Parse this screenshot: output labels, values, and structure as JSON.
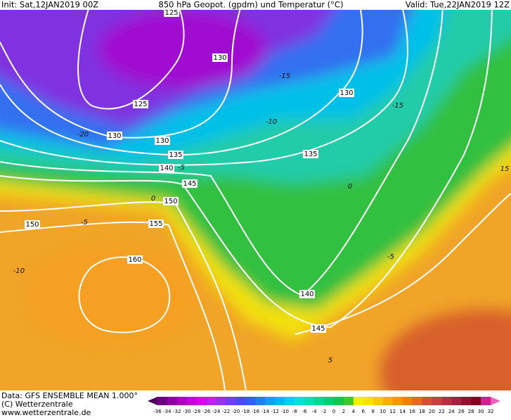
{
  "header": {
    "init": "Init: Sat,12JAN2019 00Z",
    "title": "850 hPa Geopot. (gpdm) und Temperatur (°C)",
    "valid": "Valid: Tue,22JAN2019 12Z"
  },
  "footer": {
    "data": "Data: GFS ENSEMBLE MEAN 1.000°",
    "copyright": "(C) Wetterzentrale",
    "url": "www.wetterzentrale.de"
  },
  "geopotential_labels": [
    "125",
    "130",
    "125",
    "130",
    "130",
    "130",
    "135",
    "135",
    "140",
    "145",
    "150",
    "150",
    "155",
    "160",
    "140",
    "145"
  ],
  "temperature_labels": [
    "-15",
    "-15",
    "-20",
    "-10",
    "-5",
    "0",
    "-5",
    "-10",
    "0",
    "5",
    "-5",
    "15"
  ],
  "colorbar": {
    "labels": [
      "-36",
      "-34",
      "-32",
      "-30",
      "-28",
      "-26",
      "-24",
      "-22",
      "-20",
      "-18",
      "-16",
      "-14",
      "-12",
      "-10",
      "-8",
      "-6",
      "-4",
      "-2",
      "0",
      "2",
      "4",
      "6",
      "8",
      "10",
      "12",
      "14",
      "16",
      "18",
      "20",
      "22",
      "24",
      "26",
      "28",
      "30",
      "32"
    ],
    "colors": [
      "#50005a",
      "#6e0080",
      "#8c00a0",
      "#aa00be",
      "#c800dc",
      "#e000f0",
      "#c020f0",
      "#9a30f0",
      "#7040f0",
      "#4a4cf0",
      "#3060f0",
      "#2080f0",
      "#10a0f0",
      "#00b8f0",
      "#00d0f0",
      "#00e0d8",
      "#00e0b0",
      "#00d890",
      "#00d070",
      "#10c850",
      "#40c830",
      "#f0f000",
      "#f8e000",
      "#f8c800",
      "#f8b000",
      "#f89800",
      "#f08000",
      "#e86820",
      "#d85030",
      "#c84040",
      "#b83040",
      "#a82040",
      "#981030",
      "#880020",
      "#d02090",
      "#f060c0"
    ]
  }
}
